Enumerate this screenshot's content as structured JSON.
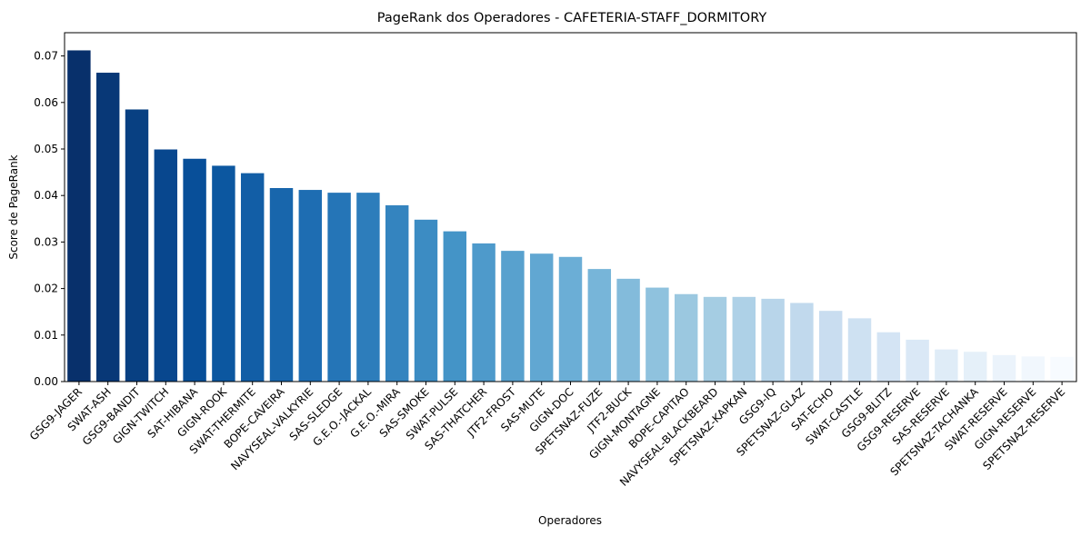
{
  "chart_data": {
    "type": "bar",
    "title": "PageRank dos Operadores - CAFETERIA-STAFF_DORMITORY",
    "xlabel": "Operadores",
    "ylabel": "Score de PageRank",
    "ylim": [
      0,
      0.075
    ],
    "yticks": [
      "0.00",
      "0.01",
      "0.02",
      "0.03",
      "0.04",
      "0.05",
      "0.06",
      "0.07"
    ],
    "grid": false,
    "colormap": "Blues_r",
    "color_start": "#08306b",
    "color_end": "#f7fbff",
    "categories": [
      "GSG9-JAGER",
      "SWAT-ASH",
      "GSG9-BANDIT",
      "GIGN-TWITCH",
      "SAT-HIBANA",
      "GIGN-ROOK",
      "SWAT-THERMITE",
      "BOPE-CAVEIRA",
      "NAVYSEAL-VALKYRIE",
      "SAS-SLEDGE",
      "G.E.O.-JACKAL",
      "G.E.O.-MIRA",
      "SAS-SMOKE",
      "SWAT-PULSE",
      "SAS-THATCHER",
      "JTF2-FROST",
      "SAS-MUTE",
      "GIGN-DOC",
      "SPETSNAZ-FUZE",
      "JTF2-BUCK",
      "GIGN-MONTAGNE",
      "BOPE-CAPITAO",
      "NAVYSEAL-BLACKBEARD",
      "SPETSNAZ-KAPKAN",
      "GSG9-IQ",
      "SPETSNAZ-GLAZ",
      "SAT-ECHO",
      "SWAT-CASTLE",
      "GSG9-BLITZ",
      "GSG9-RESERVE",
      "SAS-RESERVE",
      "SPETSNAZ-TACHANKA",
      "SWAT-RESERVE",
      "GIGN-RESERVE",
      "SPETSNAZ-RESERVE"
    ],
    "values": [
      0.0712,
      0.0664,
      0.0585,
      0.0499,
      0.0479,
      0.0464,
      0.0448,
      0.0416,
      0.0412,
      0.0406,
      0.0406,
      0.0379,
      0.0348,
      0.0323,
      0.0297,
      0.0281,
      0.0275,
      0.0268,
      0.0242,
      0.0221,
      0.0202,
      0.0188,
      0.0182,
      0.0182,
      0.0178,
      0.0169,
      0.0152,
      0.0136,
      0.0106,
      0.009,
      0.0069,
      0.0064,
      0.0057,
      0.0054,
      0.0053
    ]
  }
}
